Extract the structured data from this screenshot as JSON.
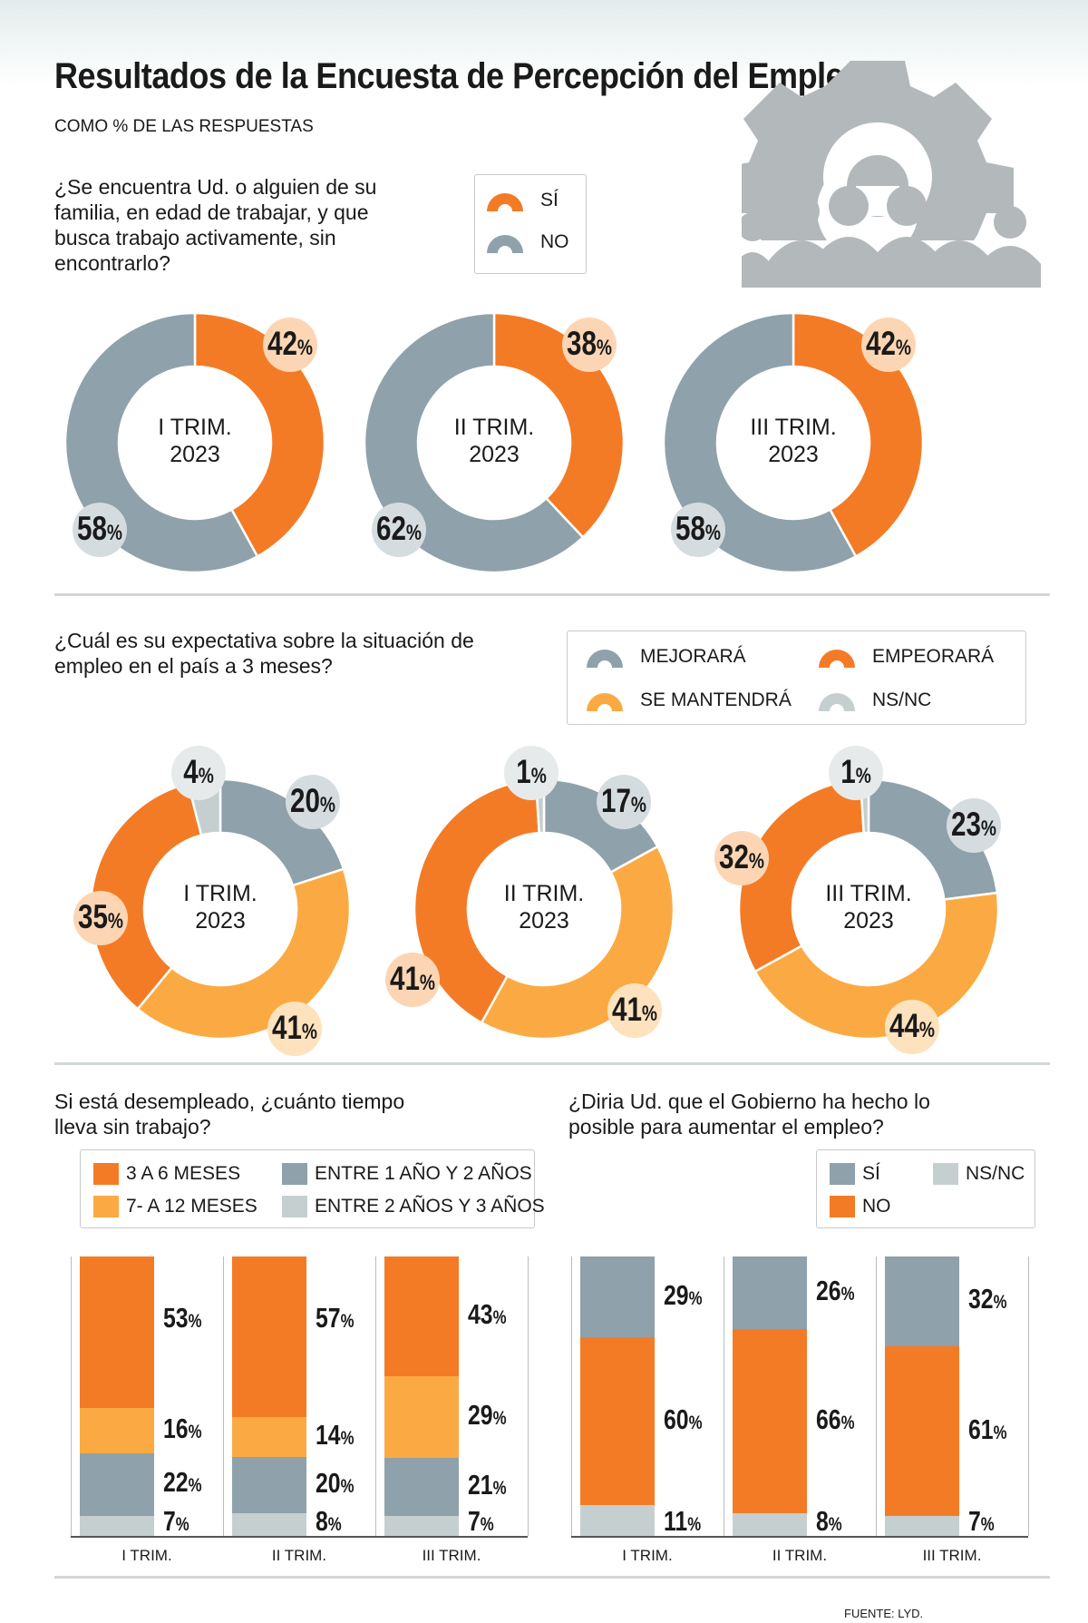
{
  "title": "Resultados de la Encuesta de Percepción del Empleo",
  "subtitle": "COMO % DE LAS RESPUESTAS",
  "source": "FUENTE: LYD.",
  "colors": {
    "si": "#f47b26",
    "no": "#8fa1aa",
    "empeorara": "#f47b26",
    "mejorara": "#8fa1aa",
    "mantendra": "#fbaa43",
    "nsnc": "#c6cfd0",
    "icon": "#b3b8bb"
  },
  "icon": "people-gear-icon",
  "q1": {
    "question": "¿Se encuentra Ud. o alguien de su familia, en edad de trabajar, y que busca trabajo activamente, sin encontrarlo?",
    "legend": [
      "SÍ",
      "NO"
    ]
  },
  "q2": {
    "question": "¿Cuál es su expectativa sobre la situación de empleo en el país a 3 meses?",
    "legend": [
      "MEJORARÁ",
      "EMPEORARÁ",
      "SE MANTENDRÁ",
      "NS/NC"
    ]
  },
  "q3": {
    "question": "Si está desempleado, ¿cuánto tiempo lleva sin trabajo?",
    "legend": [
      "3 A 6 MESES",
      "ENTRE 1 AÑO Y 2 AÑOS",
      "7- A 12 MESES",
      "ENTRE 2 AÑOS Y 3 AÑOS"
    ]
  },
  "q4": {
    "question": "¿Diria Ud. que el Gobierno ha hecho lo posible para aumentar el empleo?",
    "legend": [
      "SÍ",
      "NS/NC",
      "NO"
    ]
  },
  "chart_data": [
    {
      "type": "pie",
      "question": "q1",
      "series": [
        {
          "name": "I TRIM. 2023",
          "values": {
            "SÍ": 42,
            "NO": 58
          }
        },
        {
          "name": "II TRIM. 2023",
          "values": {
            "SÍ": 38,
            "NO": 62
          }
        },
        {
          "name": "III TRIM. 2023",
          "values": {
            "SÍ": 42,
            "NO": 58
          }
        }
      ],
      "center_labels": [
        [
          "I TRIM.",
          "2023"
        ],
        [
          "II TRIM.",
          "2023"
        ],
        [
          "III TRIM.",
          "2023"
        ]
      ]
    },
    {
      "type": "pie",
      "question": "q2",
      "series": [
        {
          "name": "I TRIM. 2023",
          "values": {
            "MEJORARÁ": 20,
            "SE MANTENDRÁ": 41,
            "EMPEORARÁ": 35,
            "NS/NC": 4
          }
        },
        {
          "name": "II TRIM. 2023",
          "values": {
            "MEJORARÁ": 17,
            "SE MANTENDRÁ": 41,
            "EMPEORARÁ": 41,
            "NS/NC": 1
          }
        },
        {
          "name": "III TRIM. 2023",
          "values": {
            "MEJORARÁ": 23,
            "SE MANTENDRÁ": 44,
            "EMPEORARÁ": 32,
            "NS/NC": 1
          }
        }
      ],
      "center_labels": [
        [
          "I TRIM.",
          "2023"
        ],
        [
          "II TRIM.",
          "2023"
        ],
        [
          "III TRIM.",
          "2023"
        ]
      ]
    },
    {
      "type": "bar",
      "stacked": true,
      "question": "q3",
      "categories": [
        "I TRIM.",
        "II TRIM.",
        "III TRIM."
      ],
      "series": [
        {
          "name": "3 A 6 MESES",
          "values": [
            53,
            57,
            43
          ]
        },
        {
          "name": "7- A 12 MESES",
          "values": [
            16,
            14,
            29
          ]
        },
        {
          "name": "ENTRE 1 AÑO Y 2 AÑOS",
          "values": [
            22,
            20,
            21
          ]
        },
        {
          "name": "ENTRE 2 AÑOS Y 3 AÑOS",
          "values": [
            7,
            8,
            7
          ]
        }
      ],
      "ylim": [
        0,
        100
      ]
    },
    {
      "type": "bar",
      "stacked": true,
      "question": "q4",
      "categories": [
        "I TRIM.",
        "II TRIM.",
        "III TRIM."
      ],
      "series": [
        {
          "name": "SÍ",
          "values": [
            29,
            26,
            32
          ]
        },
        {
          "name": "NO",
          "values": [
            60,
            66,
            61
          ]
        },
        {
          "name": "NS/NC",
          "values": [
            11,
            8,
            7
          ]
        }
      ],
      "ylim": [
        0,
        100
      ]
    }
  ]
}
